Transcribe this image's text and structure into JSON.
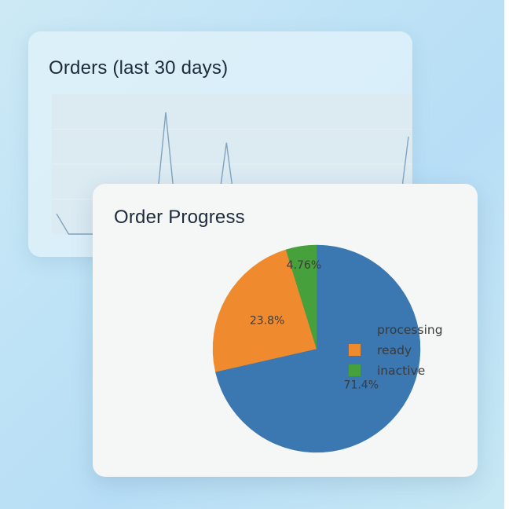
{
  "orders_card": {
    "title": "Orders (last 30 days)"
  },
  "progress_card": {
    "title": "Order Progress"
  },
  "chart_data": [
    {
      "type": "line",
      "title": "Orders (last 30 days)",
      "x": [
        1,
        2,
        3,
        4,
        5,
        6,
        7,
        8,
        9,
        10,
        11,
        12,
        13,
        14,
        15,
        16,
        17,
        18,
        19,
        20,
        21,
        22,
        23,
        24,
        25,
        26,
        27,
        28,
        29,
        30
      ],
      "values": [
        1,
        0,
        0,
        0,
        0,
        0,
        0,
        0,
        0,
        6,
        0,
        0,
        0,
        0,
        4.5,
        0,
        0,
        0,
        0,
        0,
        0,
        0,
        0,
        0,
        0,
        0,
        0,
        0,
        0,
        4.8
      ],
      "ylim": [
        0,
        6.5
      ],
      "color": "#7fa3bf"
    },
    {
      "type": "pie",
      "title": "Order Progress",
      "slices": [
        {
          "label": "processing",
          "value": 71.4,
          "display": "71.4%",
          "color": "#3b77b0"
        },
        {
          "label": "ready",
          "value": 23.8,
          "display": "23.8%",
          "color": "#ef8b2e"
        },
        {
          "label": "inactive",
          "value": 4.76,
          "display": "4.76%",
          "color": "#46a03b"
        }
      ],
      "legend_position": "right"
    }
  ]
}
